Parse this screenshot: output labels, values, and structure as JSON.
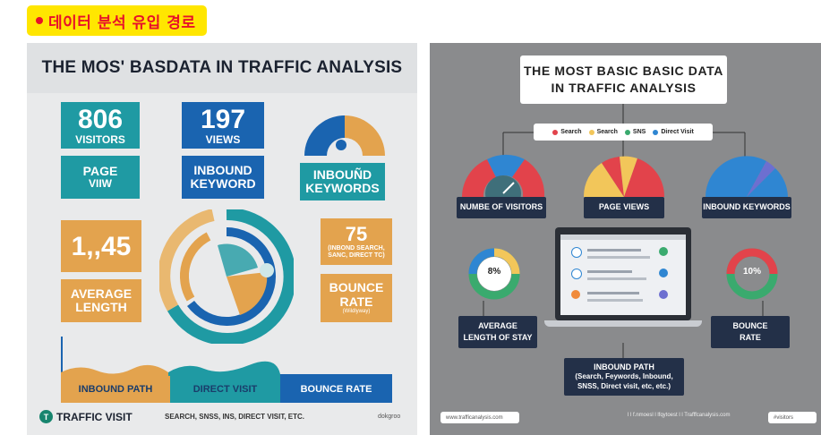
{
  "tag": {
    "label": "데이터 분석 유입 경로",
    "bg": "#ffe600",
    "color": "#e8102a"
  },
  "left": {
    "title": "THE MOS' BASDATA IN TRAFFIC ANALYSIS",
    "visitors": {
      "number": "806",
      "label": "VISITORS"
    },
    "views": {
      "number": "197",
      "label": "VIEWS"
    },
    "page_view": {
      "line1": "PAGE",
      "line2": "VIIW"
    },
    "inbound_keyword": {
      "line1": "INBOUND",
      "line2": "KEYWORD"
    },
    "inbound_keywords": {
      "line1": "INBOUÑD",
      "line2": "KEYWORDS"
    },
    "big_number": "1,,45",
    "right_number": {
      "number": "75",
      "line1": "(INBOND SEARCH,",
      "line2": "SANC, DIRECT TC)"
    },
    "average": {
      "line1": "AVERAGE",
      "line2": "LENGTH"
    },
    "bounce": {
      "line1": "BOUNCE",
      "line2": "RATE",
      "line3": "(Wildlyway)"
    },
    "bars": [
      "INBOUND PATH",
      "DIRECT VISIT",
      "BOUNCE RATE"
    ],
    "footer_logo": "TRAFFIC VISIT",
    "footer_text": "SEARCH,    SNSS, INS, DIRECT VISIT,  ETC.",
    "footer_right": "dokgroo"
  },
  "right": {
    "title_line1": "THE MOST BASIC BASIC DATA",
    "title_line2": "IN TRAFFIC ANALYSIS",
    "legend": [
      {
        "label": "Search",
        "color": "#e2434b"
      },
      {
        "label": "Search",
        "color": "#f2c65a"
      },
      {
        "label": "SNS",
        "color": "#3aaa6e"
      },
      {
        "label": "Direct Visit",
        "color": "#2f86d2"
      }
    ],
    "visitors_label": "NUMBE OF VISITORS",
    "page_views_label": "PAGE VIEWS",
    "inbound_keywords_label": "INBOUND KEYWORDS",
    "average_line1": "AVERAGE",
    "average_line2": "LENGTH OF STAY",
    "avg_percent": "8%",
    "bounce_percent": "10%",
    "bounce_line1": "BOUNCE",
    "bounce_line2": "RATE",
    "inbound_path_line1": "INBOUND PATH",
    "inbound_path_line2": "(Search,  Feywords, Inbound,",
    "inbound_path_line3": "SNSS, Direct visit, etc, etc.)",
    "footer_left": "www.trafficanalysis.com",
    "footer_mid": "l  l f.nmoesl    l  lfqytoest  l  l  Trafffcanalysis.com",
    "footer_right": "#visitors"
  }
}
